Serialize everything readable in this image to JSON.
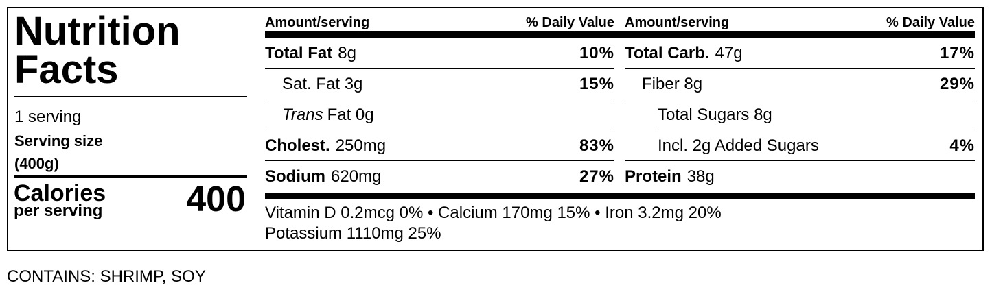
{
  "label": {
    "title": "Nutrition Facts",
    "servings": "1 serving",
    "serving_size": "Serving size (400g)",
    "calories_label": "Calories",
    "calories_sub": "per serving",
    "calories": "400",
    "left": {
      "amount_header": "Amount/serving",
      "dv_header": "% Daily Value",
      "rows": [
        {
          "name": "Total Fat",
          "amount": "8g",
          "dv": "10%"
        },
        {
          "name": "Sat. Fat 3g",
          "dv": "15%"
        },
        {
          "name_italic": "Trans",
          "name": "Fat 0g"
        },
        {
          "name": "Cholest.",
          "amount": "250mg",
          "dv": "83%"
        },
        {
          "name": "Sodium",
          "amount": "620mg",
          "dv": "27%"
        }
      ]
    },
    "right": {
      "amount_header": "Amount/serving",
      "dv_header": "% Daily Value",
      "rows": [
        {
          "name": "Total Carb.",
          "amount": "47g",
          "dv": "17%"
        },
        {
          "name": "Fiber 8g",
          "dv": "29%"
        },
        {
          "name": "Total Sugars 8g"
        },
        {
          "name": "Incl. 2g Added Sugars",
          "dv": "4%"
        },
        {
          "name": "Protein",
          "amount": "38g"
        }
      ]
    },
    "vitamins": [
      "Vitamin D 0.2mcg 0% • Calcium 170mg 15% • Iron 3.2mg 20%",
      "Potassium 1110mg 25%"
    ]
  },
  "contains": "CONTAINS: SHRIMP, SOY"
}
